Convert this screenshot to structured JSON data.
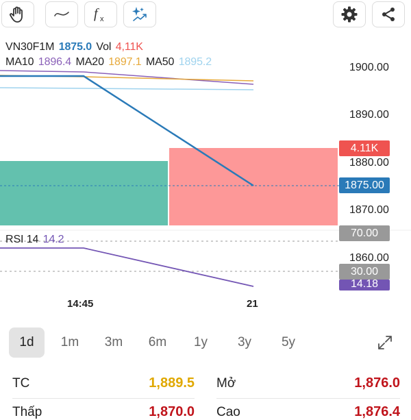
{
  "toolbar": {
    "tools": [
      "hand-icon",
      "line-tool-icon",
      "function-icon",
      "ai-sparkle-icon"
    ],
    "actions": [
      "gear-icon",
      "share-icon"
    ]
  },
  "legend": {
    "symbol": "VN30F1M",
    "price": "1875.0",
    "vol_label": "Vol",
    "vol_value": "4,11K",
    "ma10_label": "MA10",
    "ma10_value": "1896.4",
    "ma20_label": "MA20",
    "ma20_value": "1897.1",
    "ma50_label": "MA50",
    "ma50_value": "1895.2",
    "rsi_label": "RSI 14",
    "rsi_value": "14.2"
  },
  "colors": {
    "price_line": "#2a7ab8",
    "ma10": "#8a60b8",
    "ma20": "#e6a93a",
    "ma50": "#9fd3ee",
    "vol_up": "#63c1ae",
    "vol_down": "#fd9898",
    "vol_tag": "#ef5350",
    "rsi": "#7355b4",
    "gray_tag": "#999999",
    "orange_value": "#e0a800",
    "red_value": "#c0141b"
  },
  "axis": {
    "price_labels": [
      "1900.00",
      "1890.00",
      "1880.00",
      "1870.00",
      "1860.00"
    ],
    "time_labels": [
      "14:45",
      "21"
    ]
  },
  "tags": {
    "vol": "4.11K",
    "price": "1875.00",
    "rsi_upper": "70.00",
    "rsi_lower": "30.00",
    "rsi_current": "14.18"
  },
  "ranges": [
    "1d",
    "1m",
    "3m",
    "6m",
    "1y",
    "3y",
    "5y"
  ],
  "active_range": "1d",
  "stats": {
    "tc_label": "TC",
    "tc_value": "1,889.5",
    "mo_label": "Mở",
    "mo_value": "1,876.0",
    "thap_label": "Thấp",
    "thap_value": "1,870.0",
    "cao_label": "Cao",
    "cao_value": "1,876.4"
  }
}
